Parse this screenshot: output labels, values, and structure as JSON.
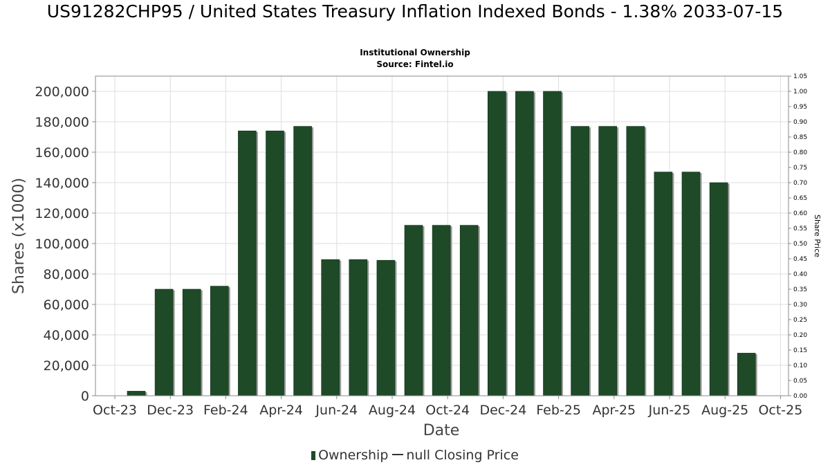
{
  "header": {
    "title": "US91282CHP95 / United States Treasury Inflation Indexed Bonds - 1.38% 2033-07-15",
    "subtitle": "Institutional Ownership",
    "source": "Source: Fintel.io"
  },
  "chart_data": {
    "type": "bar",
    "title": "US91282CHP95 / United States Treasury Inflation Indexed Bonds - 1.38% 2033-07-15",
    "subtitle": "Institutional Ownership",
    "xlabel": "Date",
    "ylabel": "Shares (x1000)",
    "y2label": "Share Price",
    "ylim": [
      0,
      210000
    ],
    "y2lim": [
      0,
      1.05
    ],
    "yticks": [
      "0",
      "20,000",
      "40,000",
      "60,000",
      "80,000",
      "100,000",
      "120,000",
      "140,000",
      "160,000",
      "180,000",
      "200,000"
    ],
    "y2ticks": [
      "0.00",
      "0.05",
      "0.10",
      "0.15",
      "0.20",
      "0.25",
      "0.30",
      "0.35",
      "0.40",
      "0.45",
      "0.50",
      "0.55",
      "0.60",
      "0.65",
      "0.70",
      "0.75",
      "0.80",
      "0.85",
      "0.90",
      "0.95",
      "1.00",
      "1.05"
    ],
    "xticks": [
      "Oct-23",
      "Dec-23",
      "Feb-24",
      "Apr-24",
      "Jun-24",
      "Aug-24",
      "Oct-24",
      "Dec-24",
      "Feb-25",
      "Apr-25",
      "Jun-25",
      "Aug-25",
      "Oct-25"
    ],
    "grid": true,
    "legend_position": "bottom",
    "series": [
      {
        "name": "Ownership",
        "color": "#1e4a28",
        "values": [
          3000,
          70000,
          70000,
          72000,
          174000,
          174000,
          177000,
          89500,
          89500,
          89000,
          112000,
          112000,
          112000,
          200000,
          200000,
          200000,
          177000,
          177000,
          177000,
          147000,
          147000,
          140000,
          28000
        ]
      }
    ],
    "legend": {
      "ownership_label": "Ownership",
      "price_label": "null Closing Price"
    }
  }
}
